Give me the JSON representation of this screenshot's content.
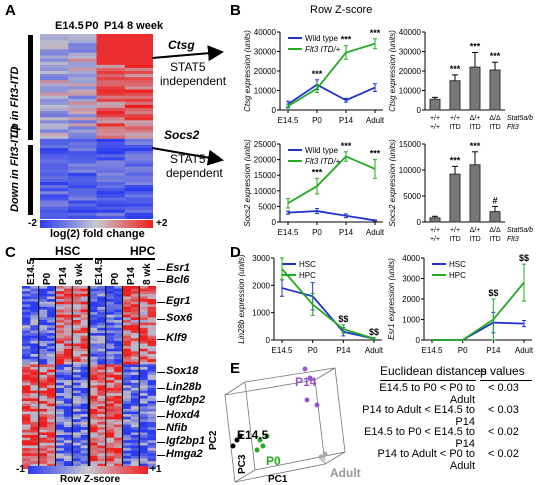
{
  "panel_labels": {
    "A": "A",
    "B": "B",
    "C": "C",
    "D": "D",
    "E": "E"
  },
  "panelA": {
    "columns": [
      "E14.5",
      "P0",
      "P14",
      "8 week"
    ],
    "row_group_up": "Up in Flt3-ITD",
    "row_group_down": "Down in Flt3-ITD",
    "scale_min": "-2",
    "scale_max": "+2",
    "scale_label": "log(2) fold change",
    "colors": {
      "low": "#2b3cf0",
      "mid": "#b8b8c8",
      "high": "#f01e1e"
    }
  },
  "arrows": {
    "gene1": "Ctsg",
    "gene1_line1": "STAT5",
    "gene1_line2": "independent",
    "gene2": "Socs2",
    "gene2_line1": "STAT5",
    "gene2_line2": "dependent"
  },
  "panelB_title": "Row Z-score",
  "panelC": {
    "group1": "HSC",
    "group2": "HPC",
    "columns": [
      "E14.5",
      "P0",
      "P14",
      "8 wk",
      "E14.5",
      "P0",
      "P14",
      "8 wk"
    ],
    "genes": [
      "Esr1",
      "Bcl6",
      "Egr1",
      "Sox6",
      "Klf9",
      "Sox18",
      "Lin28b",
      "Igf2bp2",
      "Hoxd4",
      "Nfib",
      "Igf2bp1",
      "Hmga2"
    ],
    "scale_min": "-1",
    "scale_max": "+1",
    "scale_label": "Row Z-score"
  },
  "panelE": {
    "axes": {
      "pc1": "PC1",
      "pc2": "PC2",
      "pc3": "PC3"
    },
    "groups": [
      {
        "name": "E14.5",
        "color": "#000000"
      },
      {
        "name": "P0",
        "color": "#22aa22"
      },
      {
        "name": "P14",
        "color": "#9955cc"
      },
      {
        "name": "Adult",
        "color": "#999999"
      }
    ],
    "table_header1": "Euclidean distances",
    "table_header2": "p values",
    "rows": [
      {
        "text": "E14.5 to P0 < P0 to Adult",
        "p": "< 0.03"
      },
      {
        "text": "P14 to Adult < E14.5 to P14",
        "p": "< 0.03"
      },
      {
        "text": "E14.5 to P0 < E14.5 to P14",
        "p": "< 0.02"
      },
      {
        "text": "P14 to Adult < P0 to Adult",
        "p": "< 0.02"
      }
    ]
  },
  "chart_data": [
    {
      "type": "line",
      "categories": [
        "E14.5",
        "P0",
        "P14",
        "Adult"
      ],
      "ylabel": "Ctsg expression (units)",
      "ylim": [
        0,
        40000
      ],
      "yticks": [
        "0",
        "10000",
        "20000",
        "30000",
        "40000"
      ],
      "series": [
        {
          "name": "Wild type",
          "color": "#2233cc",
          "values": [
            3000,
            13000,
            5000,
            11500
          ],
          "err": [
            1500,
            2500,
            1000,
            2000
          ]
        },
        {
          "name": "Flt3 ITD/+",
          "color": "#22aa22",
          "values": [
            2000,
            11000,
            29500,
            34000
          ],
          "err": [
            1000,
            2000,
            3500,
            2500
          ]
        }
      ],
      "annotations": [
        "***",
        "***",
        "***"
      ]
    },
    {
      "type": "bar",
      "ylabel": "Ctsg expression (units)",
      "ylim": [
        0,
        40000
      ],
      "yticks": [
        "0",
        "10000",
        "20000",
        "30000",
        "40000"
      ],
      "categories": [
        "+/+ +/+",
        "+/+ ITD",
        "Δ/+ ITD",
        "Δ/Δ ITD"
      ],
      "row1": [
        "+/+",
        "+/+",
        "Δ/+",
        "Δ/Δ"
      ],
      "row2": [
        "+/+",
        "ITD",
        "ITD",
        "ITD"
      ],
      "row_label1": "Stat5a/b",
      "row_label2": "Flt3",
      "values": [
        5500,
        15000,
        22000,
        20500
      ],
      "err": [
        1000,
        3000,
        7500,
        4000
      ],
      "annotations": [
        "",
        "***",
        "***",
        "***"
      ]
    },
    {
      "type": "line",
      "categories": [
        "E14.5",
        "P0",
        "P14",
        "Adult"
      ],
      "ylabel": "Socs2 expression (units)",
      "ylim": [
        0,
        25000
      ],
      "yticks": [
        "0",
        "5000",
        "10000",
        "15000",
        "20000",
        "25000"
      ],
      "series": [
        {
          "name": "Wild type",
          "color": "#2233cc",
          "values": [
            3000,
            3500,
            2000,
            500
          ],
          "err": [
            500,
            800,
            600,
            200
          ]
        },
        {
          "name": "Flt3 ITD/+",
          "color": "#22aa22",
          "values": [
            6000,
            11500,
            21000,
            17000
          ],
          "err": [
            1500,
            2500,
            1500,
            3000
          ]
        }
      ],
      "annotations": [
        "***",
        "***",
        "***"
      ]
    },
    {
      "type": "bar",
      "ylabel": "Socs2 expression (units)",
      "ylim": [
        0,
        15000
      ],
      "yticks": [
        "0",
        "5000",
        "10000",
        "15000"
      ],
      "categories": [
        "+/+ +/+",
        "+/+ ITD",
        "Δ/+ ITD",
        "Δ/Δ ITD"
      ],
      "row1": [
        "+/+",
        "+/+",
        "Δ/+",
        "Δ/Δ"
      ],
      "row2": [
        "+/+",
        "ITD",
        "ITD",
        "ITD"
      ],
      "row_label1": "Stat5a/b",
      "row_label2": "Flt3",
      "values": [
        800,
        9200,
        11000,
        2000
      ],
      "err": [
        300,
        1500,
        2500,
        1000
      ],
      "annotations": [
        "",
        "***",
        "***",
        "#"
      ]
    },
    {
      "type": "line",
      "categories": [
        "E14.5",
        "P0",
        "P14",
        "Adult"
      ],
      "ylabel": "Lin28b expression (units)",
      "ylim": [
        0,
        3000
      ],
      "yticks": [
        "0",
        "1000",
        "2000",
        "3000"
      ],
      "series": [
        {
          "name": "HSC",
          "color": "#2233cc",
          "values": [
            1900,
            1600,
            300,
            50
          ],
          "err": [
            300,
            500,
            150,
            30
          ]
        },
        {
          "name": "HPC",
          "color": "#22aa22",
          "values": [
            2600,
            1300,
            400,
            50
          ],
          "err": [
            400,
            400,
            150,
            30
          ]
        }
      ],
      "annotations": [
        "$$",
        "$$"
      ]
    },
    {
      "type": "line",
      "categories": [
        "E14.5",
        "P0",
        "P14",
        "Adult"
      ],
      "ylabel": "Esr1 expression (units)",
      "ylim": [
        0,
        4000
      ],
      "yticks": [
        "0",
        "1000",
        "2000",
        "3000",
        "4000"
      ],
      "series": [
        {
          "name": "HSC",
          "color": "#2233cc",
          "values": [
            0,
            0,
            850,
            800
          ],
          "err": [
            0,
            0,
            500,
            150
          ]
        },
        {
          "name": "HPC",
          "color": "#22aa22",
          "values": [
            0,
            0,
            1000,
            2800
          ],
          "err": [
            0,
            0,
            1000,
            900
          ]
        }
      ],
      "annotations": [
        "$$",
        "$$"
      ]
    }
  ]
}
